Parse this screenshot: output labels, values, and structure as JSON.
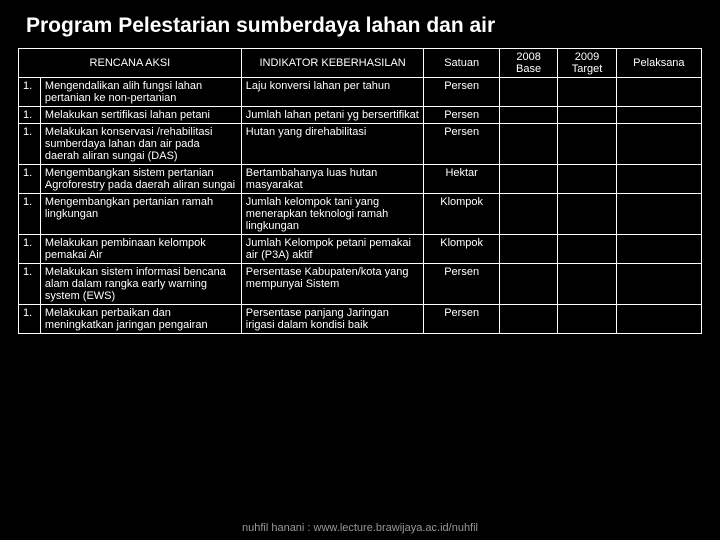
{
  "title": "Program Pelestarian  sumberdaya lahan dan air",
  "headers": {
    "rencana": "RENCANA AKSI",
    "indikator": "INDIKATOR KEBERHASILAN",
    "satuan": "Satuan",
    "base": "2008 Base",
    "target": "2009 Target",
    "pelaksana": "Pelaksana"
  },
  "rows": [
    {
      "num": "1.",
      "aksi": "Mengendalikan  alih fungsi lahan  pertanian ke non-pertanian",
      "ind": " Laju  konversi lahan per tahun",
      "sat": "Persen",
      "base": "",
      "tgt": "",
      "pel": ""
    },
    {
      "num": "1.",
      "aksi": "Melakukan sertifikasi lahan petani",
      "ind": "Jumlah lahan petani yg bersertifikat",
      "sat": "Persen",
      "base": "",
      "tgt": "",
      "pel": ""
    },
    {
      "num": "1.",
      "aksi": "Melakukan konservasi /rehabilitasi sumberdaya lahan dan air  pada daerah aliran sungai (DAS)",
      "ind": "Hutan yang direhabilitasi",
      "sat": "Persen",
      "base": "",
      "tgt": "",
      "pel": ""
    },
    {
      "num": "1.",
      "aksi": "Mengembangkan sistem pertanian Agroforestry pada daerah  aliran sungai",
      "ind": "Bertambahanya luas hutan masyarakat",
      "sat": "Hektar",
      "base": "",
      "tgt": "",
      "pel": ""
    },
    {
      "num": "1.",
      "aksi": "Mengembangkan  pertanian ramah lingkungan",
      "ind": "Jumlah kelompok tani yang menerapkan teknologi ramah lingkungan",
      "sat": "Klompok",
      "base": "",
      "tgt": "",
      "pel": ""
    },
    {
      "num": "1.",
      "aksi": "Melakukan pembinaan kelompok pemakai Air",
      "ind": "Jumlah Kelompok petani pemakai air (P3A) aktif",
      "sat": "Klompok",
      "base": "",
      "tgt": "",
      "pel": ""
    },
    {
      "num": "1.",
      "aksi": "Melakukan sistem informasi bencana alam dalam rangka early warning system (EWS)",
      "ind": "Persentase Kabupaten/kota yang mempunyai  Sistem",
      "sat": "Persen",
      "base": "",
      "tgt": "",
      "pel": ""
    },
    {
      "num": "1.",
      "aksi": "Melakukan perbaikan dan meningkatkan jaringan pengairan",
      "ind": " Persentase panjang  Jaringan irigasi  dalam kondisi baik",
      "sat": "Persen",
      "base": "",
      "tgt": "",
      "pel": ""
    }
  ],
  "footer": "nuhfil hanani : www.lecture.brawijaya.ac.id/nuhfil"
}
